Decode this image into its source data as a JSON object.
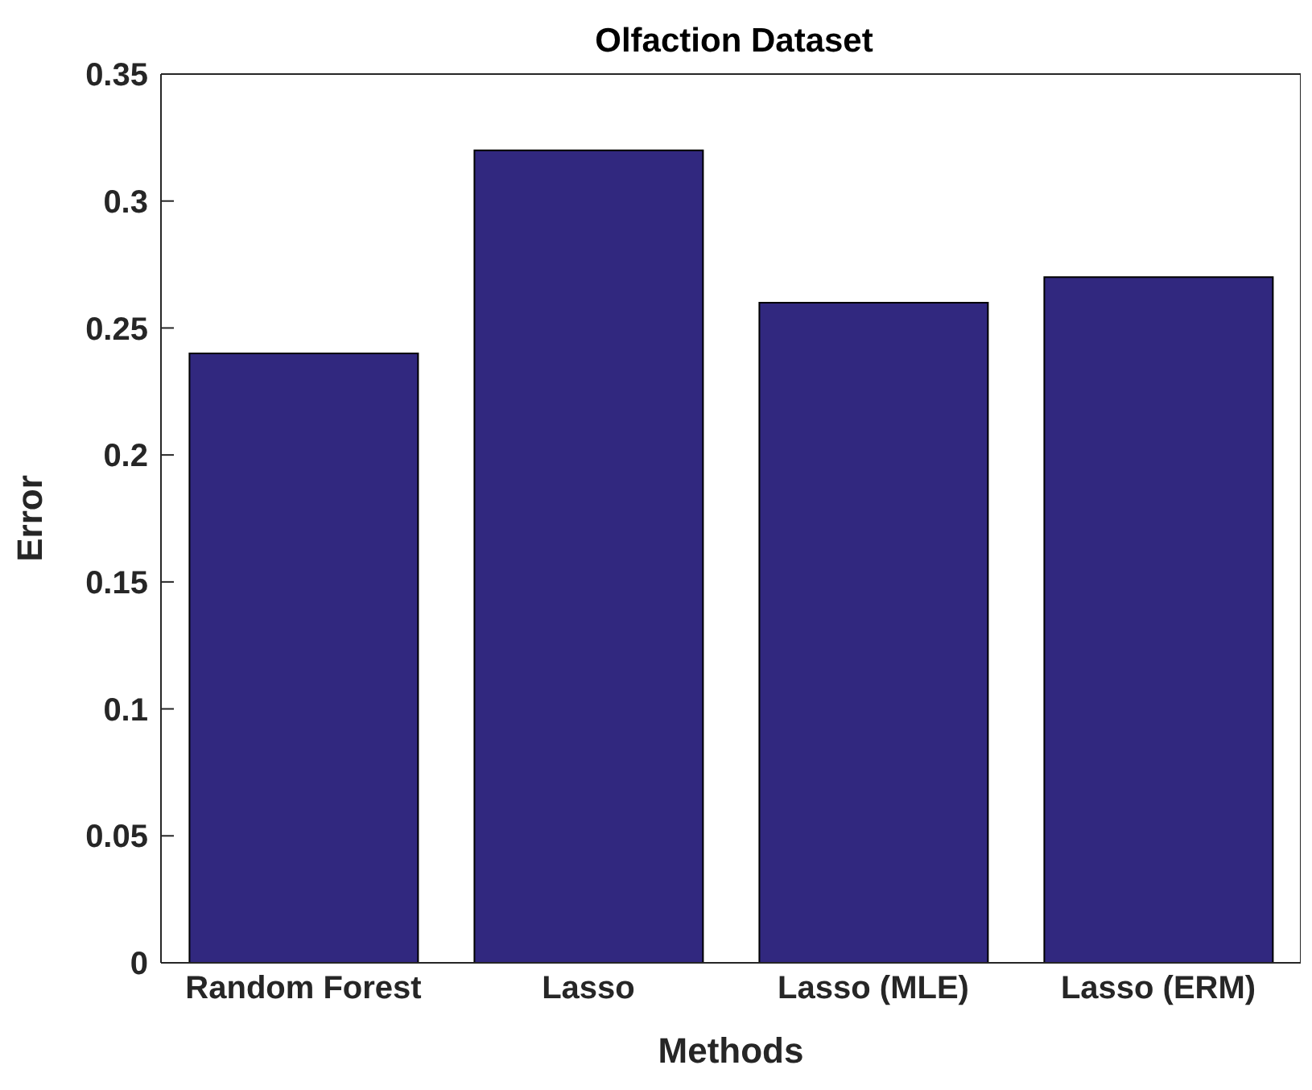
{
  "chart_data": {
    "type": "bar",
    "title": "Olfaction Dataset",
    "xlabel": "Methods",
    "ylabel": "Error",
    "categories": [
      "Random Forest",
      "Lasso",
      "Lasso (MLE)",
      "Lasso (ERM)"
    ],
    "values": [
      0.24,
      0.32,
      0.26,
      0.27
    ],
    "color": "#31287f",
    "ylim": [
      0,
      0.35
    ],
    "yticks": [
      0,
      0.05,
      0.1,
      0.15,
      0.2,
      0.25,
      0.3,
      0.35
    ],
    "grid": false,
    "legend": false
  }
}
